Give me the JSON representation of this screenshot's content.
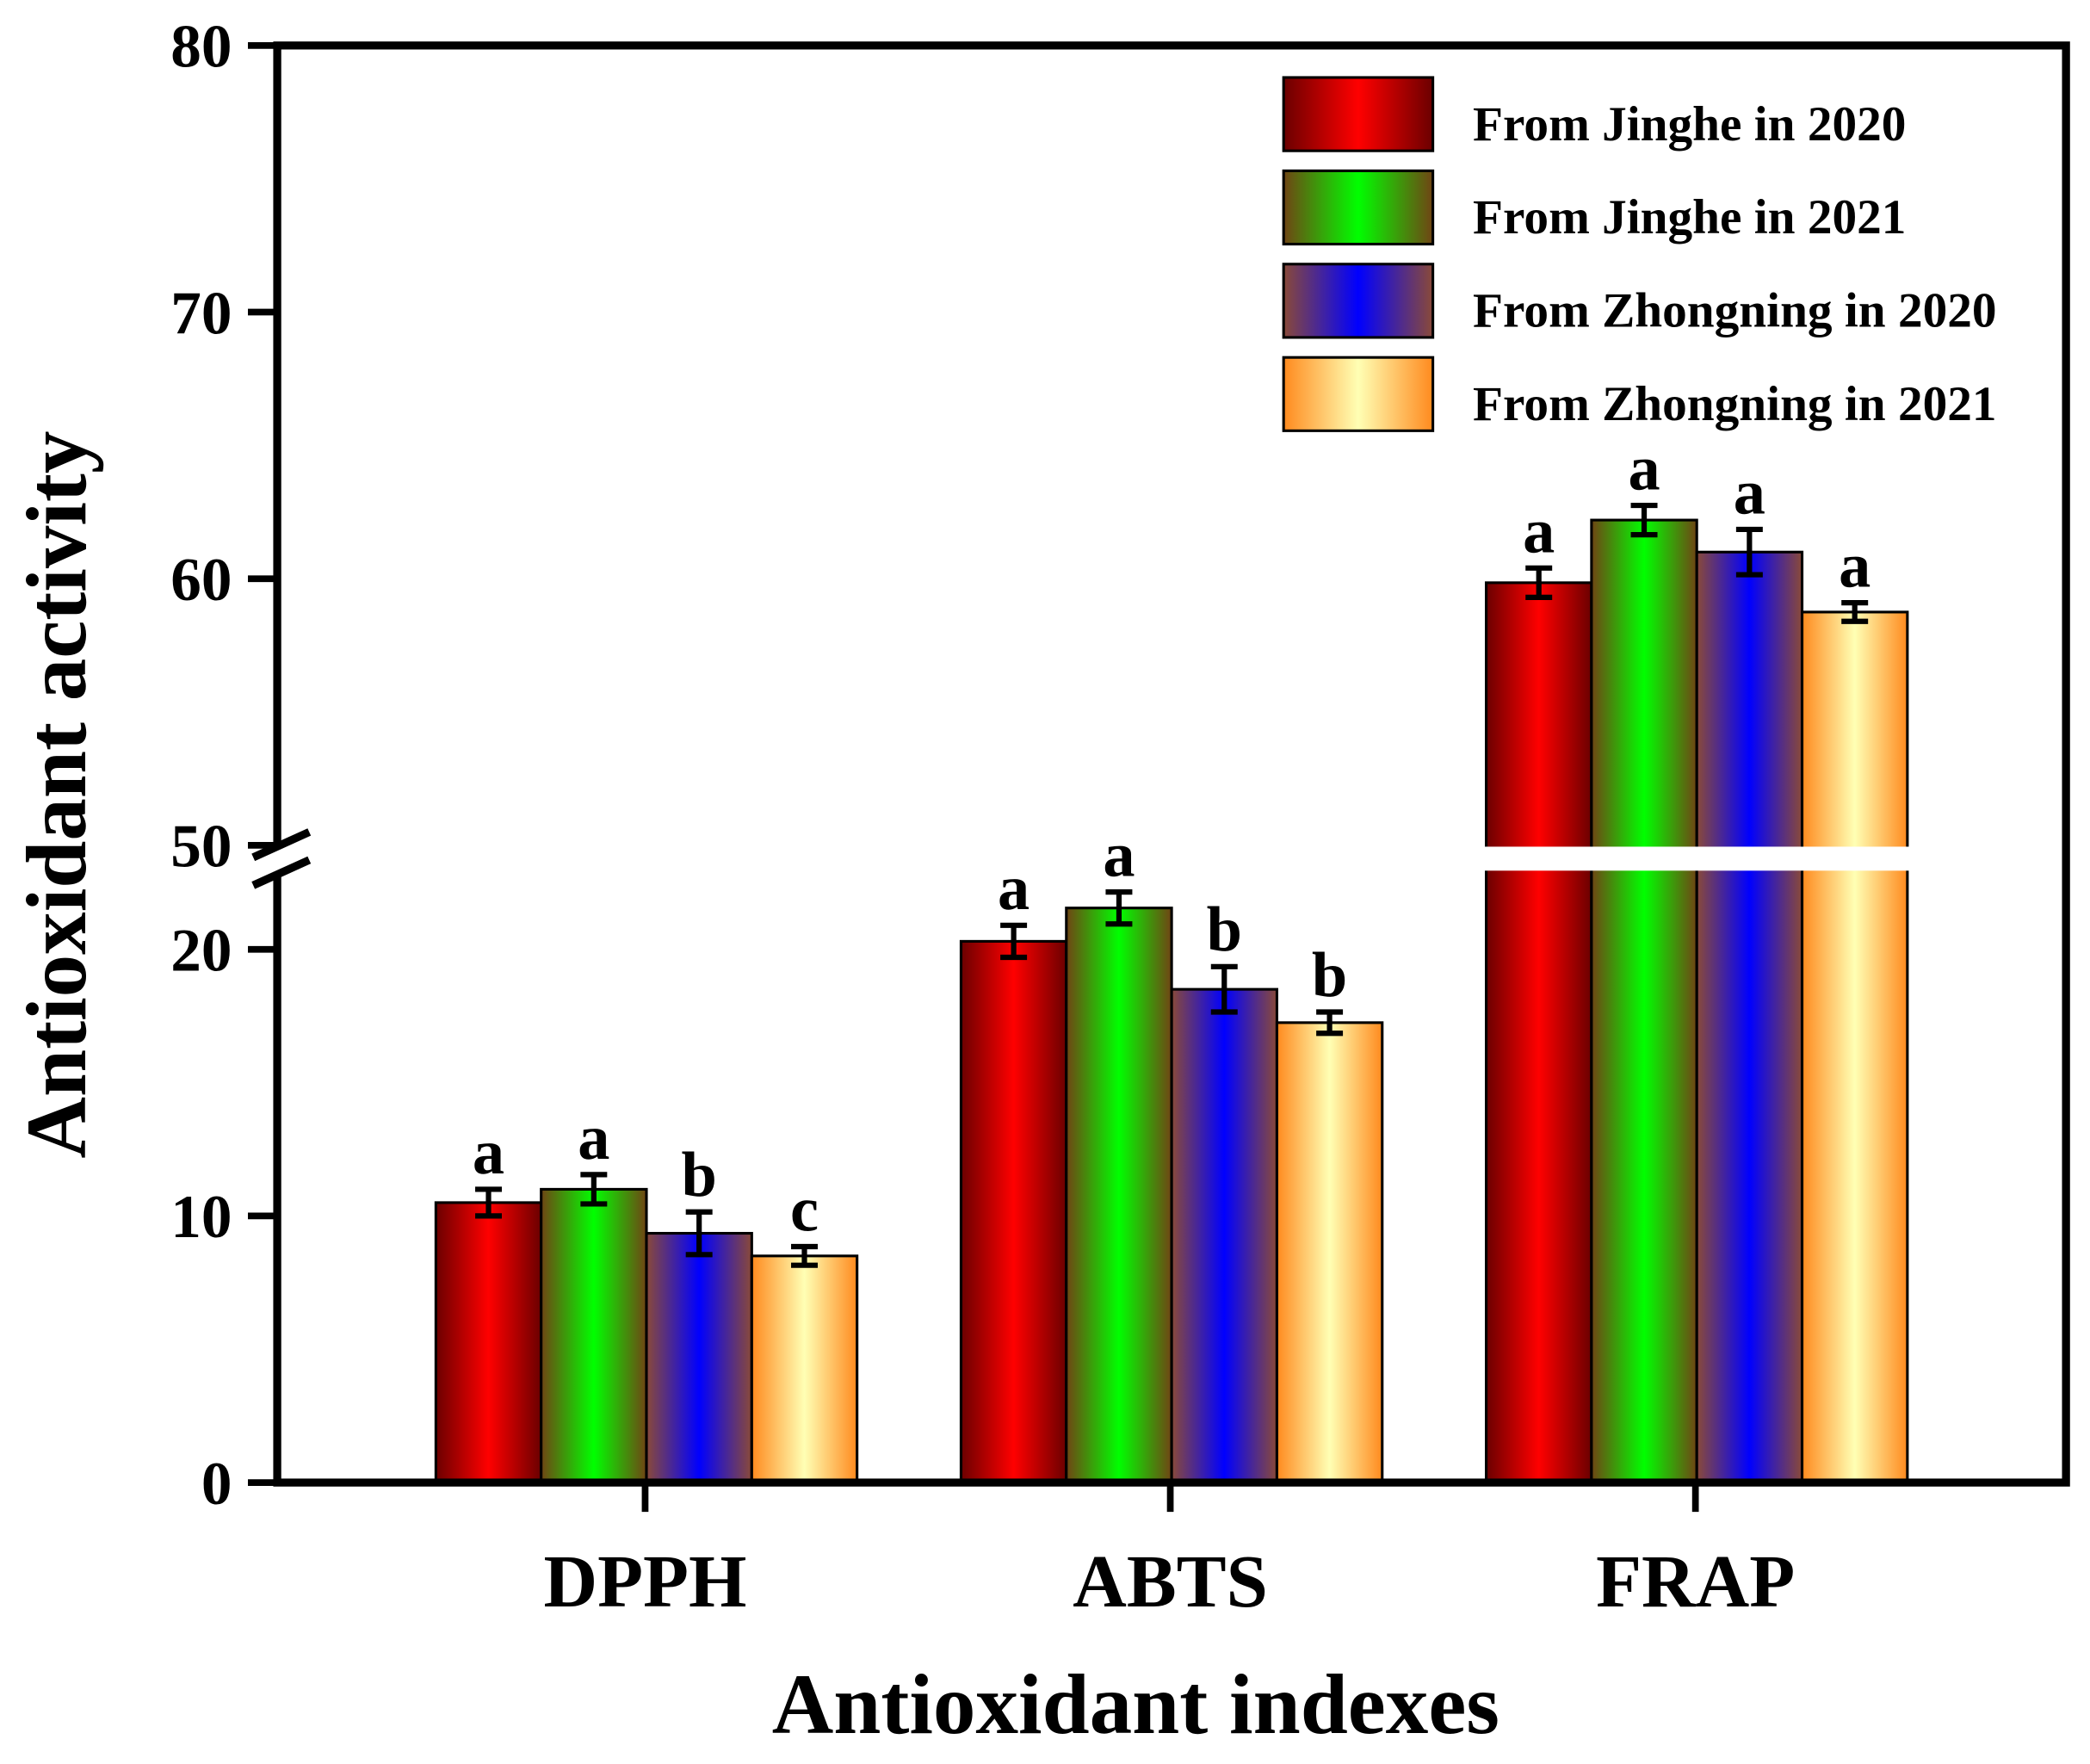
{
  "chart_data": {
    "type": "bar",
    "title": "",
    "xlabel": "Antioxidant indexes",
    "ylabel": "Antioxidant activity",
    "categories": [
      "DPPH",
      "ABTS",
      "FRAP"
    ],
    "y_axis_break": {
      "lower_range": [
        0,
        22.9
      ],
      "upper_range": [
        50,
        80
      ]
    },
    "y_ticks": [
      0,
      10,
      20,
      50,
      60,
      70,
      80
    ],
    "y_tick_labels": [
      "0",
      "10",
      "20",
      "50",
      "60",
      "70",
      "80"
    ],
    "grid": false,
    "legend_position": "top-right",
    "series": [
      {
        "name": "From Jinghe in 2020",
        "values": [
          10.5,
          20.3,
          59.85
        ],
        "errors": [
          0.5,
          0.6,
          0.55
        ],
        "letters": [
          "a",
          "a",
          "a"
        ],
        "colors": [
          "#6b0000",
          "#ff0000"
        ]
      },
      {
        "name": "From Jinghe in 2021",
        "values": [
          11.0,
          21.55,
          62.2
        ],
        "errors": [
          0.55,
          0.6,
          0.55
        ],
        "letters": [
          "a",
          "a",
          "a"
        ],
        "colors": [
          "#704414",
          "#00ff00"
        ]
      },
      {
        "name": "From Zhongning in 2020",
        "values": [
          9.35,
          18.5,
          61.0
        ],
        "errors": [
          0.8,
          0.85,
          0.85
        ],
        "letters": [
          "b",
          "b",
          "a"
        ],
        "colors": [
          "#8a4a38",
          "#0000ff"
        ]
      },
      {
        "name": "From Zhongning in 2021",
        "values": [
          8.5,
          17.25,
          58.75
        ],
        "errors": [
          0.35,
          0.4,
          0.35
        ],
        "letters": [
          "c",
          "b",
          "a"
        ],
        "colors": [
          "#ff8a1e",
          "#ffffb4"
        ]
      }
    ]
  }
}
